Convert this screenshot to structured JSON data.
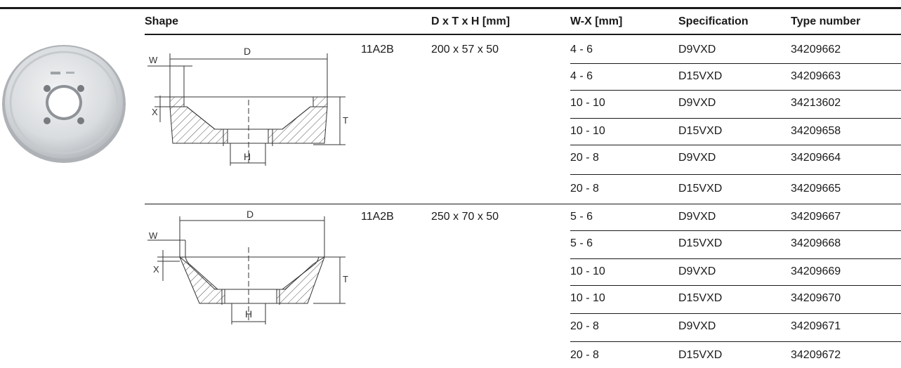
{
  "headers": {
    "shape": "Shape",
    "dims": "D x T x H [mm]",
    "wx": "W-X [mm]",
    "spec": "Specification",
    "type_number": "Type number"
  },
  "groups": [
    {
      "shape_code": "11A2B",
      "dims": "200 x 57 x 50",
      "drawing_labels": {
        "d": "D",
        "w": "W",
        "x": "X",
        "t": "T",
        "h": "H"
      },
      "rows": [
        {
          "wx": "4 - 6",
          "spec": "D9VXD",
          "type": "34209662"
        },
        {
          "wx": "4 - 6",
          "spec": "D15VXD",
          "type": "34209663"
        },
        {
          "wx": "10 - 10",
          "spec": "D9VXD",
          "type": "34213602"
        },
        {
          "wx": "10 - 10",
          "spec": "D15VXD",
          "type": "34209658"
        },
        {
          "wx": "20 - 8",
          "spec": "D9VXD",
          "type": "34209664"
        },
        {
          "wx": "20 - 8",
          "spec": "D15VXD",
          "type": "34209665"
        }
      ]
    },
    {
      "shape_code": "11A2B",
      "dims": "250 x 70 x 50",
      "drawing_labels": {
        "d": "D",
        "w": "W",
        "x": "X",
        "t": "T",
        "h": "H"
      },
      "rows": [
        {
          "wx": "5 - 6",
          "spec": "D9VXD",
          "type": "34209667"
        },
        {
          "wx": "5 - 6",
          "spec": "D15VXD",
          "type": "34209668"
        },
        {
          "wx": "10 - 10",
          "spec": "D9VXD",
          "type": "34209669"
        },
        {
          "wx": "10 - 10",
          "spec": "D15VXD",
          "type": "34209670"
        },
        {
          "wx": "20 - 8",
          "spec": "D9VXD",
          "type": "34209671"
        },
        {
          "wx": "20 - 8",
          "spec": "D15VXD",
          "type": "34209672"
        }
      ]
    }
  ]
}
